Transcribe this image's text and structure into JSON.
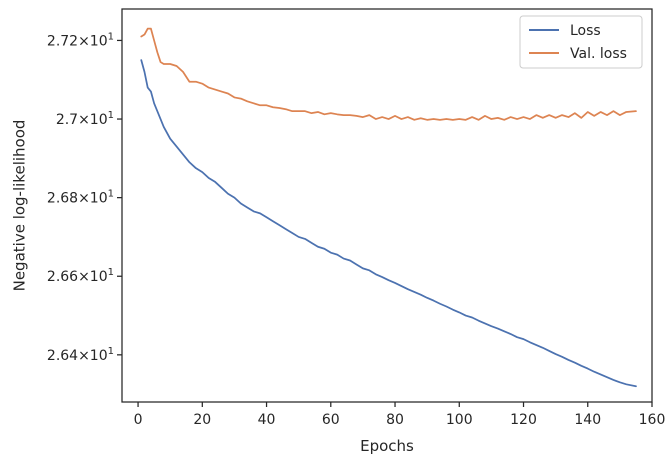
{
  "chart_data": {
    "type": "line",
    "title": "",
    "xlabel": "Epochs",
    "ylabel": "Negative log-likelihood",
    "xlim": [
      -5,
      160
    ],
    "ylim": [
      26.28,
      27.28
    ],
    "x_ticks": [
      0,
      20,
      40,
      60,
      80,
      100,
      120,
      140,
      160
    ],
    "y_ticks": [
      {
        "value": 26.4,
        "mantissa": "2.64",
        "multiplier": "×10",
        "exponent": "1"
      },
      {
        "value": 26.6,
        "mantissa": "2.66",
        "multiplier": "×10",
        "exponent": "1"
      },
      {
        "value": 26.8,
        "mantissa": "2.68",
        "multiplier": "×10",
        "exponent": "1"
      },
      {
        "value": 27.0,
        "mantissa": "2.7",
        "multiplier": "×10",
        "exponent": "1"
      },
      {
        "value": 27.2,
        "mantissa": "2.72",
        "multiplier": "×10",
        "exponent": "1"
      }
    ],
    "grid": false,
    "legend_position": "top-right",
    "series": [
      {
        "name": "Loss",
        "color": "#4c72b0",
        "x": [
          1,
          2,
          3,
          4,
          5,
          6,
          7,
          8,
          10,
          12,
          14,
          16,
          18,
          20,
          22,
          24,
          26,
          28,
          30,
          32,
          34,
          36,
          38,
          40,
          42,
          44,
          46,
          48,
          50,
          52,
          54,
          56,
          58,
          60,
          62,
          64,
          66,
          68,
          70,
          72,
          74,
          76,
          78,
          80,
          82,
          84,
          86,
          88,
          90,
          92,
          94,
          96,
          98,
          100,
          102,
          104,
          106,
          108,
          110,
          112,
          114,
          116,
          118,
          120,
          122,
          124,
          126,
          128,
          130,
          132,
          134,
          136,
          138,
          140,
          142,
          144,
          146,
          148,
          150,
          152,
          155
        ],
        "values": [
          27.15,
          27.12,
          27.08,
          27.07,
          27.04,
          27.02,
          27.0,
          26.98,
          26.95,
          26.93,
          26.91,
          26.89,
          26.875,
          26.865,
          26.85,
          26.84,
          26.825,
          26.81,
          26.8,
          26.785,
          26.775,
          26.765,
          26.76,
          26.75,
          26.74,
          26.73,
          26.72,
          26.71,
          26.7,
          26.695,
          26.685,
          26.675,
          26.67,
          26.66,
          26.655,
          26.645,
          26.64,
          26.63,
          26.62,
          26.615,
          26.605,
          26.598,
          26.59,
          26.583,
          26.575,
          26.567,
          26.56,
          26.553,
          26.545,
          26.538,
          26.53,
          26.523,
          26.515,
          26.508,
          26.5,
          26.495,
          26.487,
          26.48,
          26.473,
          26.467,
          26.46,
          26.453,
          26.445,
          26.44,
          26.432,
          26.425,
          26.418,
          26.41,
          26.402,
          26.395,
          26.387,
          26.38,
          26.372,
          26.365,
          26.357,
          26.35,
          26.343,
          26.336,
          26.33,
          26.325,
          26.32
        ]
      },
      {
        "name": "Val. loss",
        "color": "#dd8452",
        "x": [
          1,
          2,
          3,
          4,
          5,
          6,
          7,
          8,
          10,
          12,
          14,
          16,
          18,
          20,
          22,
          24,
          26,
          28,
          30,
          32,
          34,
          36,
          38,
          40,
          42,
          44,
          46,
          48,
          50,
          52,
          54,
          56,
          58,
          60,
          62,
          64,
          66,
          68,
          70,
          72,
          74,
          76,
          78,
          80,
          82,
          84,
          86,
          88,
          90,
          92,
          94,
          96,
          98,
          100,
          102,
          104,
          106,
          108,
          110,
          112,
          114,
          116,
          118,
          120,
          122,
          124,
          126,
          128,
          130,
          132,
          134,
          136,
          138,
          140,
          142,
          144,
          146,
          148,
          150,
          152,
          155
        ],
        "values": [
          27.21,
          27.215,
          27.23,
          27.23,
          27.2,
          27.17,
          27.145,
          27.14,
          27.14,
          27.135,
          27.12,
          27.095,
          27.095,
          27.09,
          27.08,
          27.075,
          27.07,
          27.065,
          27.055,
          27.052,
          27.045,
          27.04,
          27.035,
          27.035,
          27.03,
          27.028,
          27.025,
          27.02,
          27.02,
          27.02,
          27.015,
          27.018,
          27.012,
          27.015,
          27.012,
          27.01,
          27.01,
          27.008,
          27.005,
          27.01,
          27.0,
          27.005,
          27.0,
          27.008,
          27.0,
          27.005,
          26.998,
          27.002,
          26.998,
          27.0,
          26.998,
          27.0,
          26.998,
          27.0,
          26.998,
          27.005,
          26.998,
          27.008,
          27.0,
          27.003,
          26.998,
          27.005,
          27.0,
          27.005,
          27.0,
          27.01,
          27.003,
          27.01,
          27.003,
          27.01,
          27.005,
          27.015,
          27.003,
          27.018,
          27.008,
          27.018,
          27.01,
          27.02,
          27.01,
          27.018,
          27.02
        ]
      }
    ]
  }
}
